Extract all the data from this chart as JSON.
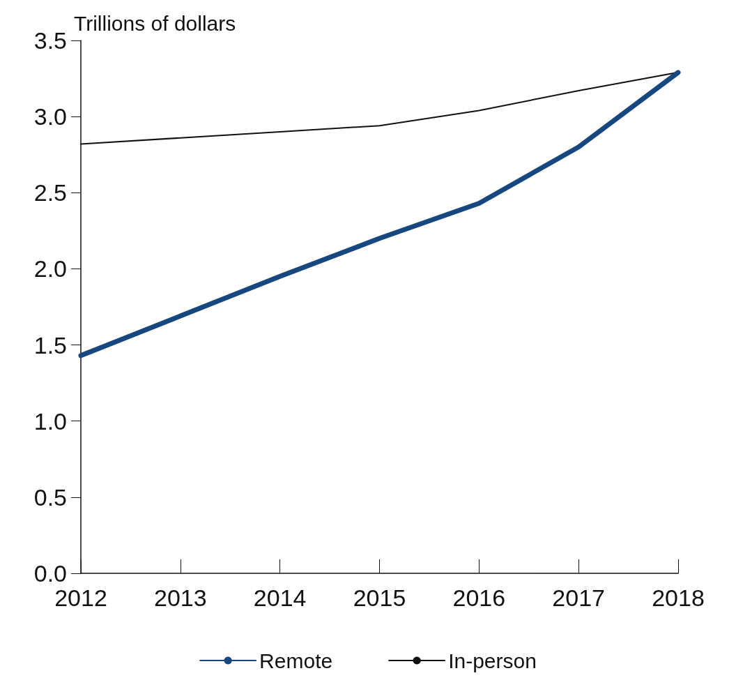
{
  "chart_data": {
    "type": "line",
    "ylabel": "Trillions of dollars",
    "categories": [
      "2012",
      "2013",
      "2014",
      "2015",
      "2016",
      "2017",
      "2018"
    ],
    "series": [
      {
        "name": "Remote",
        "color": "#17477f",
        "values": [
          1.43,
          1.69,
          1.95,
          2.2,
          2.43,
          2.8,
          3.29
        ]
      },
      {
        "name": "In-person",
        "color": "#111111",
        "values": [
          2.82,
          2.86,
          2.9,
          2.94,
          3.04,
          3.17,
          3.29
        ]
      }
    ],
    "ylim": [
      0,
      3.5
    ],
    "yticks": [
      {
        "value": 0,
        "label": "0.0"
      },
      0.5,
      {
        "value": 1,
        "label": "1.0"
      },
      1.5,
      {
        "value": 2,
        "label": "2.0"
      },
      2.5,
      {
        "value": 3,
        "label": "3.0"
      },
      {
        "value": 3.5,
        "label": "3.5"
      }
    ],
    "grid": false,
    "legend": "bottom",
    "marker": "none"
  }
}
